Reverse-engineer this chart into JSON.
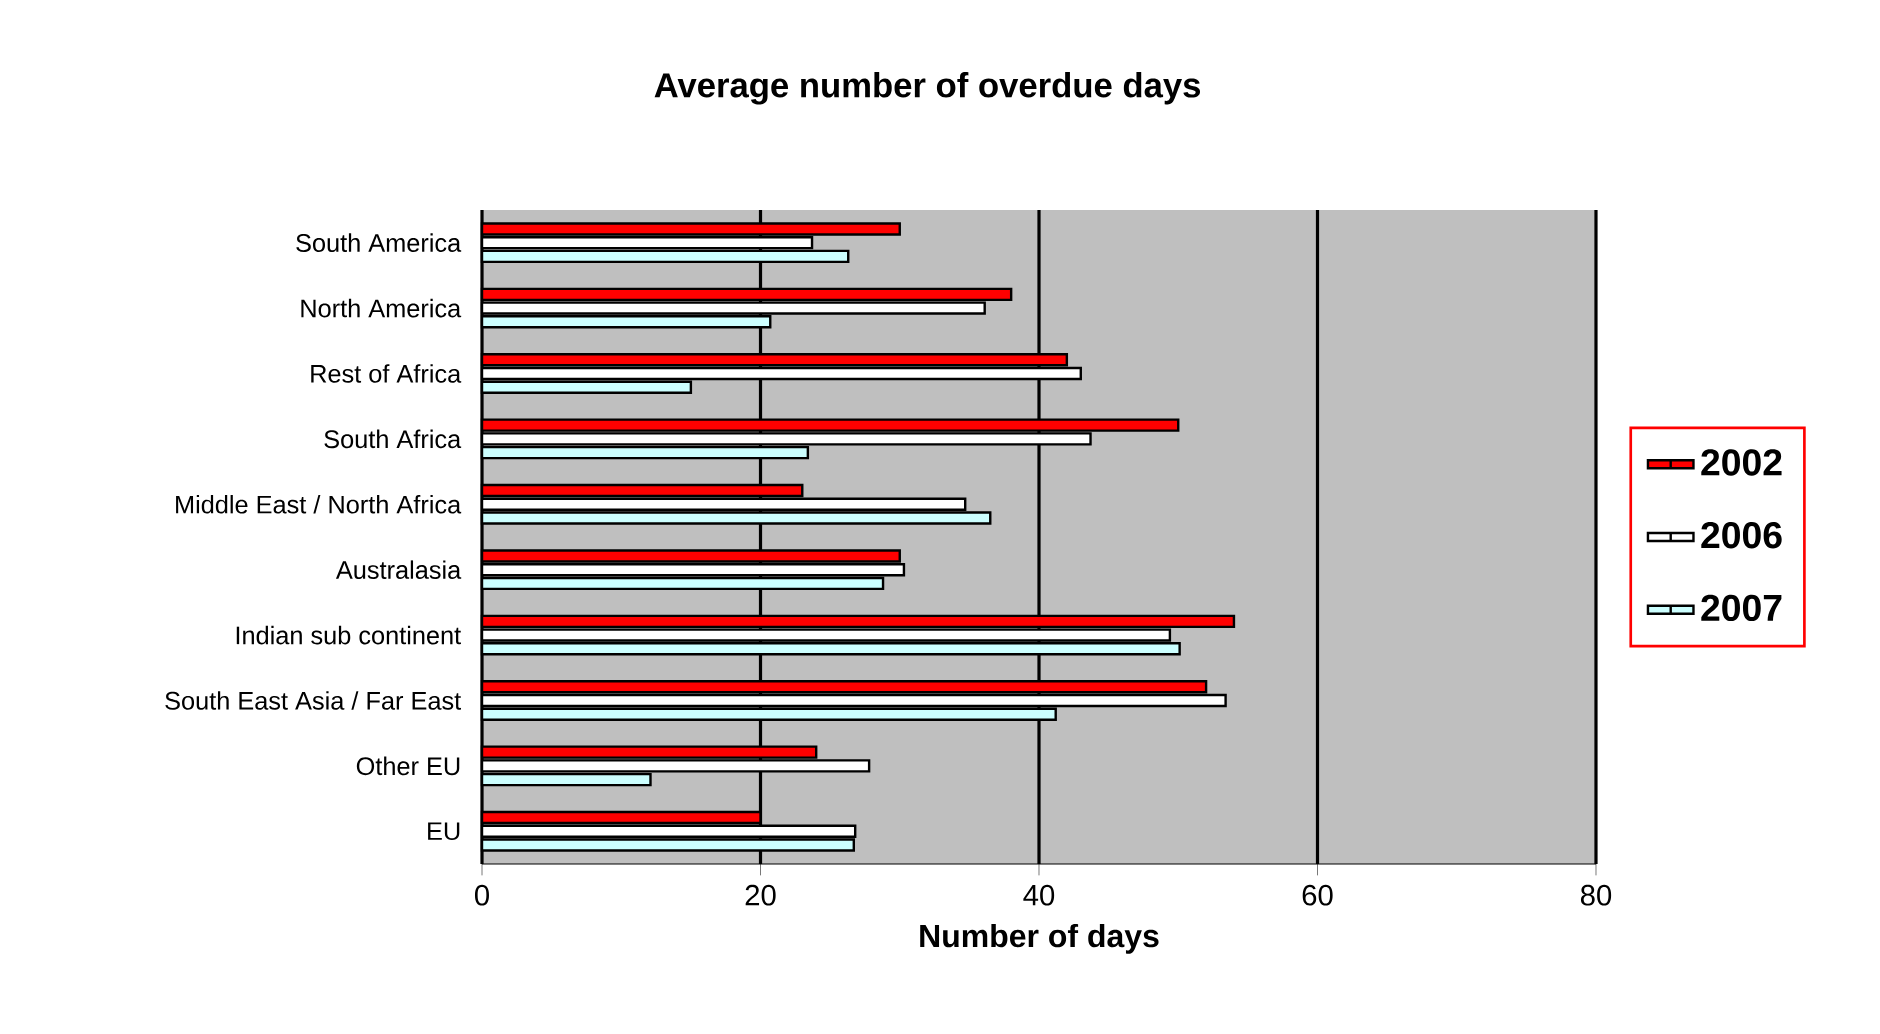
{
  "chart_data": {
    "type": "bar",
    "orientation": "horizontal",
    "title": "Average number of overdue days",
    "xlabel": "Number of days",
    "categories": [
      "South America",
      "North America",
      "Rest of Africa",
      "South Africa",
      "Middle East / North Africa",
      "Australasia",
      "Indian sub continent",
      "South East Asia / Far East",
      "Other EU",
      "EU"
    ],
    "series": [
      {
        "name": "2002",
        "color": "#ff0000",
        "values": [
          30,
          38,
          42,
          50,
          23,
          30,
          54,
          52,
          24,
          20
        ]
      },
      {
        "name": "2006",
        "color": "#ffffff",
        "values": [
          23.7,
          36.1,
          43,
          43.7,
          34.7,
          30.3,
          49.4,
          53.4,
          27.8,
          26.8
        ]
      },
      {
        "name": "2007",
        "color": "#ccffff",
        "values": [
          26.3,
          20.7,
          15,
          23.4,
          36.5,
          28.8,
          50.1,
          41.2,
          12.1,
          26.7
        ]
      }
    ],
    "xlim": [
      0,
      80
    ],
    "xticks": [
      0,
      20,
      40,
      60,
      80
    ],
    "grid": "x",
    "legend": "right"
  }
}
